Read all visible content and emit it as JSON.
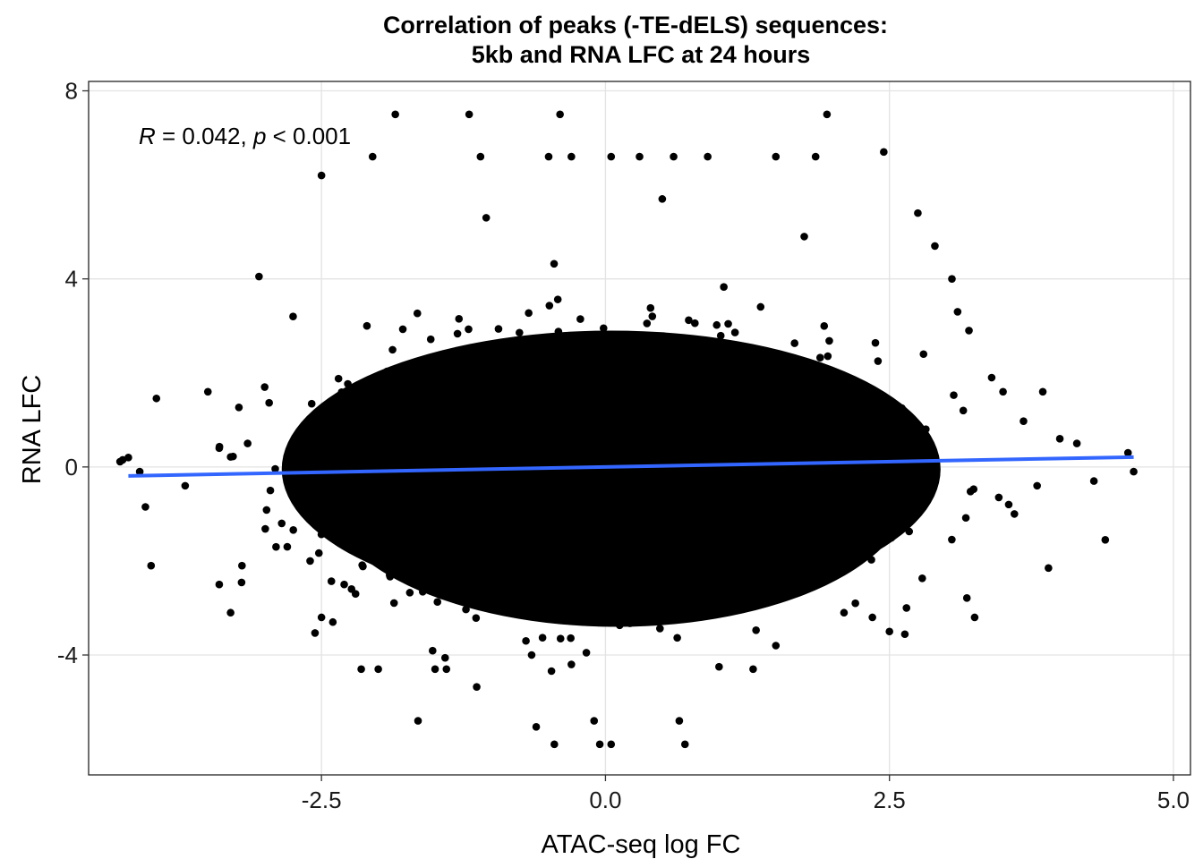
{
  "chart_data": {
    "type": "scatter",
    "title": "Correlation of peaks (-TE-dELS) sequences:",
    "subtitle": "5kb and RNA LFC at 24 hours",
    "xlabel": "ATAC-seq log FC",
    "ylabel": "RNA LFC",
    "xlim": [
      -4.55,
      5.15
    ],
    "ylim": [
      -6.55,
      8.2
    ],
    "x_ticks": [
      -2.5,
      0.0,
      2.5,
      5.0
    ],
    "x_tick_labels": [
      "-2.5",
      "0.0",
      "2.5",
      "5.0"
    ],
    "y_ticks": [
      -4,
      0,
      4,
      8
    ],
    "y_tick_labels": [
      "-4",
      "0",
      "4",
      "8"
    ],
    "grid": true,
    "annotation": {
      "r_symbol": "R",
      "r_text": " = 0.042, ",
      "p_symbol": "p",
      "p_text": " < 0.001"
    },
    "point_color": "#000000",
    "regression_line": {
      "color": "#3366FF",
      "x": [
        -4.2,
        4.65
      ],
      "y": [
        -0.19,
        0.21
      ]
    },
    "points": {
      "x": [
        -4.2,
        -4.1,
        -4.05,
        -4.0,
        -4.25,
        -3.5,
        -3.7,
        -3.4,
        -3.3,
        -3.2,
        -3.05,
        -3.4,
        -3.0,
        -2.9,
        -2.75,
        -2.6,
        -2.5,
        -2.45,
        -2.4,
        -2.3,
        -2.2,
        -2.1,
        -2.05,
        -1.9,
        -1.85,
        -1.4,
        -1.2,
        -0.4,
        1.95,
        -1.1,
        -0.5,
        -0.3,
        0.3,
        0.6,
        0.9,
        1.5,
        1.85,
        2.45,
        2.65,
        2.75,
        2.9,
        3.05,
        3.1,
        3.2,
        3.5,
        3.8,
        3.9,
        4.0,
        4.15,
        4.3,
        4.4,
        4.6,
        4.65,
        3.25,
        3.4,
        3.55,
        3.85,
        2.5,
        2.2,
        2.1,
        1.3,
        1.0,
        -1.5,
        -1.65,
        -2.5,
        -2.15,
        -2.0,
        -1.4,
        -0.3,
        -0.1,
        -0.05,
        0.05,
        0.65,
        0.7,
        -0.45,
        -0.65,
        -0.7,
        1.5,
        2.35,
        -3.15,
        -2.6,
        -2.95,
        -2.85,
        3.15,
        3.6,
        2.8,
        -1.05,
        0.5,
        0.05,
        1.75
      ],
      "y": [
        0.2,
        -0.1,
        -0.85,
        -2.1,
        0.15,
        1.6,
        -0.4,
        -2.5,
        -3.1,
        -2.1,
        4.05,
        0.4,
        1.7,
        -1.7,
        3.2,
        -2.0,
        6.2,
        0.9,
        -3.3,
        -2.5,
        -2.7,
        3.0,
        6.6,
        -2.3,
        7.5,
        -1.3,
        7.5,
        7.5,
        7.5,
        6.6,
        6.6,
        6.6,
        6.6,
        6.6,
        6.6,
        6.6,
        6.6,
        6.7,
        -3.0,
        5.4,
        4.7,
        4.0,
        3.3,
        2.9,
        1.6,
        -0.4,
        -2.15,
        0.6,
        0.5,
        -0.3,
        -1.55,
        0.3,
        -0.1,
        -3.2,
        1.9,
        -0.8,
        1.6,
        -3.5,
        -2.9,
        -3.1,
        -4.3,
        -4.25,
        -4.3,
        -5.4,
        -3.2,
        -4.3,
        -4.3,
        -4.3,
        -4.2,
        -5.4,
        -5.9,
        -5.9,
        -5.4,
        -5.9,
        -5.9,
        -4.0,
        -3.7,
        -3.8,
        -3.2,
        0.5,
        0.9,
        -0.5,
        -1.2,
        1.2,
        -1.0,
        2.4,
        5.3,
        5.7,
        6.6,
        4.9
      ]
    }
  }
}
